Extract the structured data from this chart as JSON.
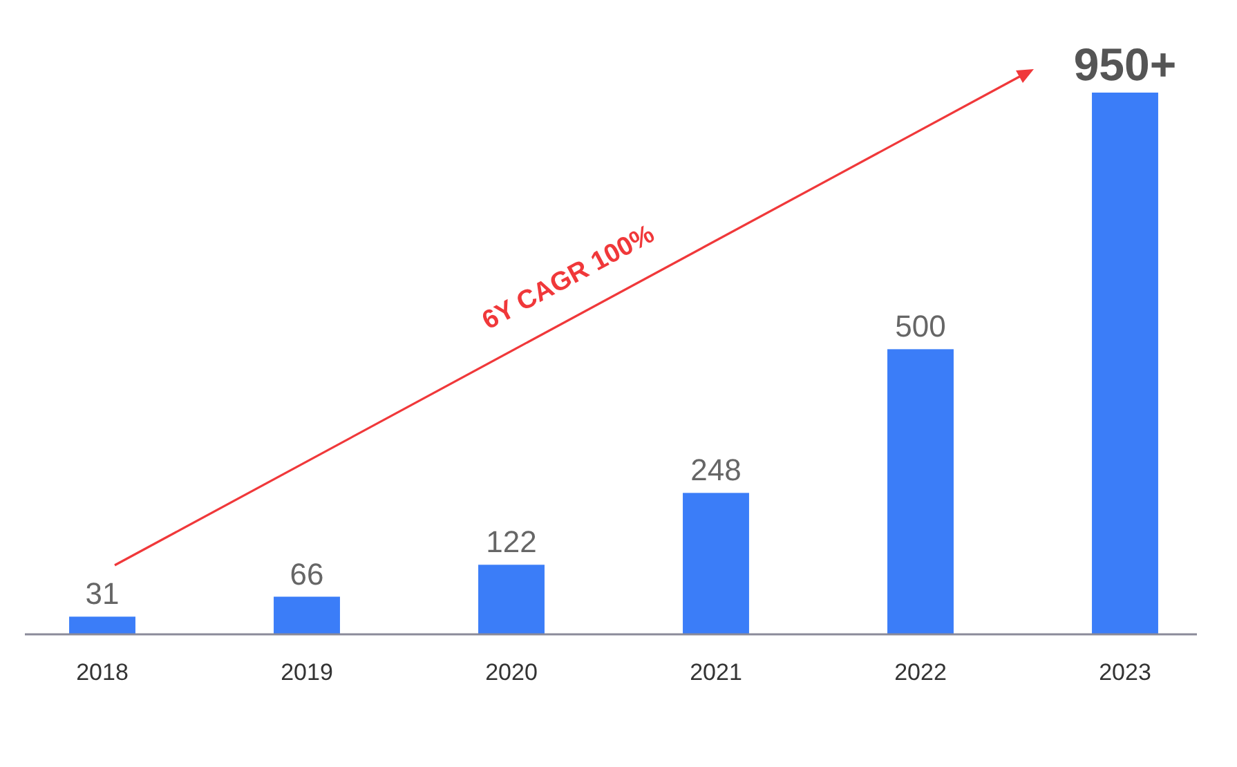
{
  "chart_data": {
    "type": "bar",
    "categories": [
      "2018",
      "2019",
      "2020",
      "2021",
      "2022",
      "2023"
    ],
    "values": [
      31,
      66,
      122,
      248,
      500,
      950
    ],
    "value_labels": [
      "31",
      "66",
      "122",
      "248",
      "500",
      "950+"
    ],
    "color": "#3b7df8",
    "annotations": [
      "6Y CAGR 100%"
    ]
  }
}
